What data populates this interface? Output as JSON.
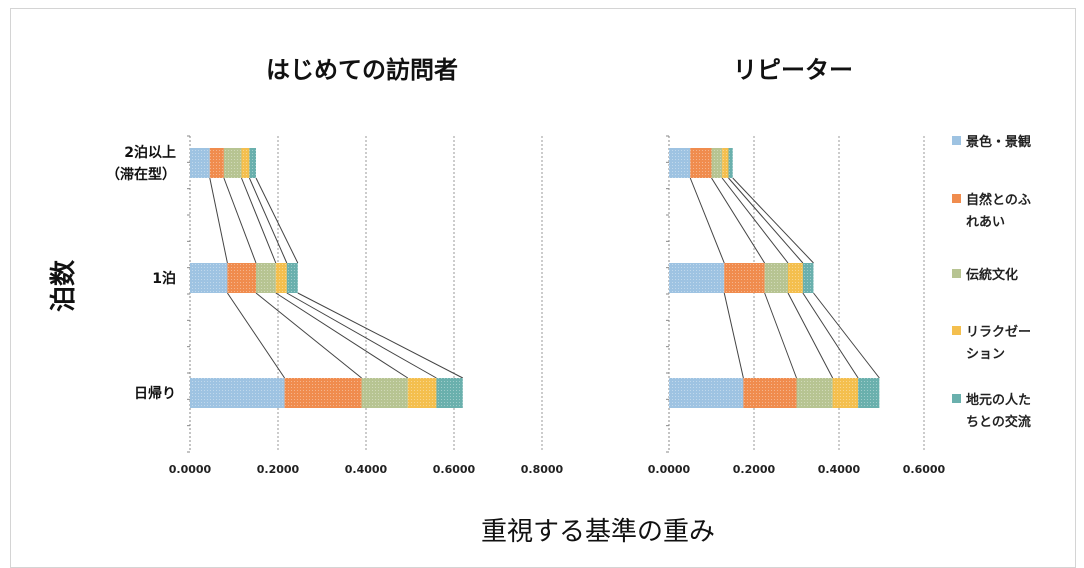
{
  "chart_data": {
    "type": "bar",
    "stacked": true,
    "orientation": "horizontal",
    "ylabel": "泊数",
    "xlabel": "重視する基準の重み",
    "categories": [
      [
        "2泊以上",
        "（滞在型）"
      ],
      [
        "1泊"
      ],
      [
        "日帰り"
      ]
    ],
    "legend": {
      "position": "right",
      "entries": [
        {
          "name": [
            "景色・景観"
          ],
          "color": "#9ec3e2"
        },
        {
          "name": [
            "自然とのふ",
            "れあい"
          ],
          "color": "#f08c4e"
        },
        {
          "name": [
            "伝統文化"
          ],
          "color": "#b7c492"
        },
        {
          "name": [
            "リラクゼー",
            "ション"
          ],
          "color": "#f4bf4e"
        },
        {
          "name": [
            "地元の人た",
            "ちとの交流"
          ],
          "color": "#6ab0ad"
        }
      ]
    },
    "panels": [
      {
        "title": "はじめての訪問者",
        "xlim": [
          0,
          0.8
        ],
        "ticks": [
          "0.0000",
          "0.2000",
          "0.4000",
          "0.6000",
          "0.8000"
        ],
        "tick_values": [
          0,
          0.2,
          0.4,
          0.6,
          0.8
        ],
        "grid": true,
        "series": [
          {
            "name": "景色・景観",
            "values": [
              0.045,
              0.085,
              0.215
            ]
          },
          {
            "name": "自然とのふれあい",
            "values": [
              0.032,
              0.065,
              0.175
            ]
          },
          {
            "name": "伝統文化",
            "values": [
              0.04,
              0.045,
              0.105
            ]
          },
          {
            "name": "リラクゼーション",
            "values": [
              0.018,
              0.025,
              0.065
            ]
          },
          {
            "name": "地元の人たちとの交流",
            "values": [
              0.015,
              0.025,
              0.06
            ]
          }
        ]
      },
      {
        "title": "リピーター",
        "xlim": [
          0,
          0.6
        ],
        "ticks": [
          "0.0000",
          "0.2000",
          "0.4000",
          "0.6000"
        ],
        "tick_values": [
          0,
          0.2,
          0.4,
          0.6
        ],
        "grid": true,
        "series": [
          {
            "name": "景色・景観",
            "values": [
              0.05,
              0.13,
              0.175
            ]
          },
          {
            "name": "自然とのふれあい",
            "values": [
              0.05,
              0.095,
              0.125
            ]
          },
          {
            "name": "伝統文化",
            "values": [
              0.025,
              0.055,
              0.085
            ]
          },
          {
            "name": "リラクゼーション",
            "values": [
              0.015,
              0.035,
              0.06
            ]
          },
          {
            "name": "地元の人たちとの交流",
            "values": [
              0.01,
              0.025,
              0.05
            ]
          }
        ]
      }
    ]
  }
}
